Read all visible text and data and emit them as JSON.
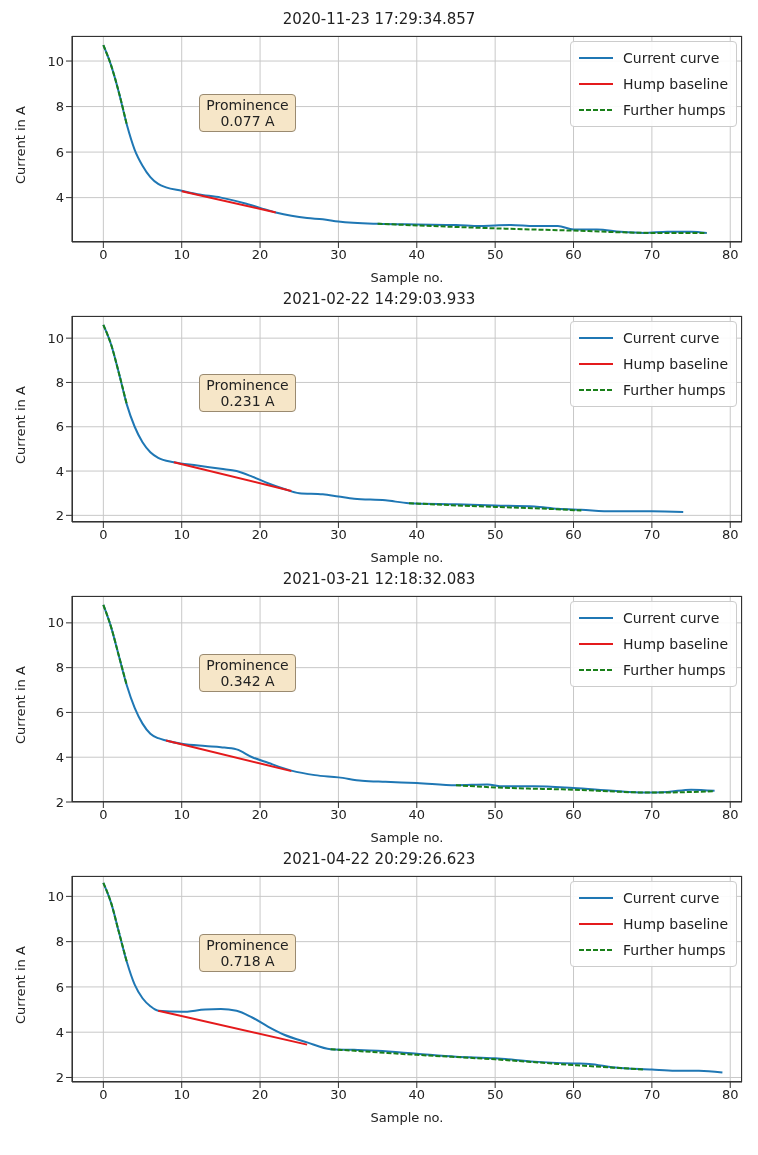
{
  "chart_data": [
    {
      "type": "line",
      "title": "2020-11-23 17:29:34.857",
      "xlabel": "Sample no.",
      "ylabel": "Current in A",
      "xlim": [
        -4,
        81.5
      ],
      "xticks": [
        0,
        10,
        20,
        30,
        40,
        50,
        60,
        70,
        80
      ],
      "ylim": [
        2.05,
        11.1
      ],
      "yticks": [
        4,
        6,
        8,
        10
      ],
      "grid": true,
      "legend": "top right",
      "marker": "none",
      "annotations": [
        "Prominence\n0.077 A"
      ],
      "series": [
        {
          "name": "Current curve",
          "color": "#1f77b4",
          "line_style": "solid",
          "x": [
            0,
            1,
            2,
            3,
            4,
            5,
            6,
            7,
            8,
            10,
            12,
            15,
            18,
            20,
            22,
            24,
            26,
            28,
            30,
            35,
            40,
            45,
            48,
            50,
            52,
            55,
            58,
            60,
            63,
            66,
            69,
            72,
            75,
            77
          ],
          "values": [
            10.7,
            9.8,
            8.6,
            7.2,
            6.1,
            5.4,
            4.9,
            4.6,
            4.45,
            4.3,
            4.15,
            4.0,
            3.75,
            3.55,
            3.35,
            3.2,
            3.1,
            3.05,
            2.95,
            2.85,
            2.82,
            2.8,
            2.75,
            2.78,
            2.8,
            2.75,
            2.75,
            2.6,
            2.6,
            2.5,
            2.45,
            2.5,
            2.5,
            2.45
          ]
        },
        {
          "name": "Hump baseline",
          "color": "#e41a1c",
          "line_style": "solid",
          "x": [
            10,
            22
          ],
          "values": [
            4.28,
            3.35
          ]
        },
        {
          "name": "Further humps",
          "color": "#1a801a",
          "line_style": "dashed",
          "x": [
            0,
            1,
            2,
            3,
            4,
            35,
            50,
            60,
            70,
            77
          ],
          "values": [
            10.7,
            9.8,
            8.6,
            7.2,
            null,
            2.85,
            2.65,
            2.55,
            2.45,
            2.45
          ]
        }
      ]
    },
    {
      "type": "line",
      "title": "2021-02-22 14:29:03.933",
      "xlabel": "Sample no.",
      "ylabel": "Current in A",
      "xlim": [
        -4,
        81.5
      ],
      "xticks": [
        0,
        10,
        20,
        30,
        40,
        50,
        60,
        70,
        80
      ],
      "ylim": [
        1.7,
        11.0
      ],
      "yticks": [
        2,
        4,
        6,
        8,
        10
      ],
      "grid": true,
      "legend": "top right",
      "marker": "none",
      "annotations": [
        "Prominence\n0.231 A"
      ],
      "series": [
        {
          "name": "Current curve",
          "color": "#1f77b4",
          "line_style": "solid",
          "x": [
            0,
            1,
            2,
            3,
            4,
            5,
            6,
            7,
            9,
            12,
            15,
            17,
            19,
            21,
            23,
            25,
            28,
            30,
            32,
            36,
            39,
            45,
            50,
            55,
            58,
            61,
            65,
            70,
            74
          ],
          "values": [
            10.6,
            9.7,
            8.4,
            7.0,
            6.0,
            5.3,
            4.85,
            4.6,
            4.4,
            4.25,
            4.1,
            4.0,
            3.75,
            3.45,
            3.2,
            3.0,
            2.95,
            2.85,
            2.75,
            2.68,
            2.55,
            2.5,
            2.45,
            2.4,
            2.3,
            2.25,
            2.18,
            2.18,
            2.15
          ]
        },
        {
          "name": "Hump baseline",
          "color": "#e41a1c",
          "line_style": "solid",
          "x": [
            9,
            24
          ],
          "values": [
            4.4,
            3.1
          ]
        },
        {
          "name": "Further humps",
          "color": "#1a801a",
          "line_style": "dashed",
          "x": [
            0,
            1,
            2,
            3,
            4,
            39,
            45,
            50,
            55,
            61
          ],
          "values": [
            10.6,
            9.7,
            8.4,
            7.0,
            null,
            2.55,
            2.45,
            2.38,
            2.32,
            2.22
          ]
        }
      ]
    },
    {
      "type": "line",
      "title": "2021-03-21 12:18:32.083",
      "xlabel": "Sample no.",
      "ylabel": "Current in A",
      "xlim": [
        -4,
        81.5
      ],
      "xticks": [
        0,
        10,
        20,
        30,
        40,
        50,
        60,
        70,
        80
      ],
      "ylim": [
        2.0,
        11.2
      ],
      "yticks": [
        2,
        4,
        6,
        8,
        10
      ],
      "grid": true,
      "legend": "top right",
      "marker": "none",
      "annotations": [
        "Prominence\n0.342 A"
      ],
      "series": [
        {
          "name": "Current curve",
          "color": "#1f77b4",
          "line_style": "solid",
          "x": [
            0,
            1,
            2,
            3,
            4,
            5,
            6,
            7,
            8,
            10,
            13,
            15,
            17,
            19,
            21,
            24,
            27,
            30,
            33,
            36,
            40,
            45,
            49,
            51,
            55,
            60,
            65,
            69,
            72,
            75,
            78
          ],
          "values": [
            10.8,
            9.8,
            8.5,
            7.2,
            6.2,
            5.5,
            5.05,
            4.85,
            4.75,
            4.6,
            4.5,
            4.45,
            4.35,
            4.0,
            3.75,
            3.4,
            3.2,
            3.1,
            2.95,
            2.9,
            2.85,
            2.75,
            2.78,
            2.7,
            2.7,
            2.62,
            2.5,
            2.42,
            2.45,
            2.55,
            2.5
          ]
        },
        {
          "name": "Hump baseline",
          "color": "#e41a1c",
          "line_style": "solid",
          "x": [
            8,
            24
          ],
          "values": [
            4.75,
            3.38
          ]
        },
        {
          "name": "Further humps",
          "color": "#1a801a",
          "line_style": "dashed",
          "x": [
            0,
            1,
            2,
            3,
            4,
            45,
            50,
            60,
            70,
            78
          ],
          "values": [
            10.8,
            9.8,
            8.5,
            7.2,
            null,
            2.75,
            2.65,
            2.55,
            2.42,
            2.48
          ]
        }
      ]
    },
    {
      "type": "line",
      "title": "2021-04-22 20:29:26.623",
      "xlabel": "Sample no.",
      "ylabel": "Current in A",
      "xlim": [
        -4,
        81.5
      ],
      "xticks": [
        0,
        10,
        20,
        30,
        40,
        50,
        60,
        70,
        80
      ],
      "ylim": [
        1.8,
        10.9
      ],
      "yticks": [
        2,
        4,
        6,
        8,
        10
      ],
      "grid": true,
      "legend": "top right",
      "marker": "none",
      "annotations": [
        "Prominence\n0.718 A"
      ],
      "series": [
        {
          "name": "Current curve",
          "color": "#1f77b4",
          "line_style": "solid",
          "x": [
            0,
            1,
            2,
            3,
            4,
            5,
            6,
            7,
            10,
            13,
            15,
            17,
            19,
            21,
            23,
            26,
            29,
            32,
            35,
            40,
            45,
            50,
            55,
            60,
            62,
            65,
            70,
            73,
            76,
            79
          ],
          "values": [
            10.6,
            9.7,
            8.4,
            7.1,
            6.1,
            5.5,
            5.15,
            4.95,
            4.9,
            5.0,
            5.02,
            4.95,
            4.65,
            4.25,
            3.9,
            3.55,
            3.25,
            3.22,
            3.18,
            3.05,
            2.92,
            2.85,
            2.7,
            2.62,
            2.6,
            2.45,
            2.35,
            2.3,
            2.3,
            2.22
          ]
        },
        {
          "name": "Hump baseline",
          "color": "#e41a1c",
          "line_style": "solid",
          "x": [
            7,
            26
          ],
          "values": [
            4.95,
            3.45
          ]
        },
        {
          "name": "Further humps",
          "color": "#1a801a",
          "line_style": "dashed",
          "x": [
            0,
            1,
            2,
            3,
            4,
            29,
            40,
            50,
            60,
            69
          ],
          "values": [
            10.6,
            9.7,
            8.4,
            7.1,
            null,
            3.25,
            3.0,
            2.8,
            2.55,
            2.35
          ]
        }
      ]
    }
  ]
}
